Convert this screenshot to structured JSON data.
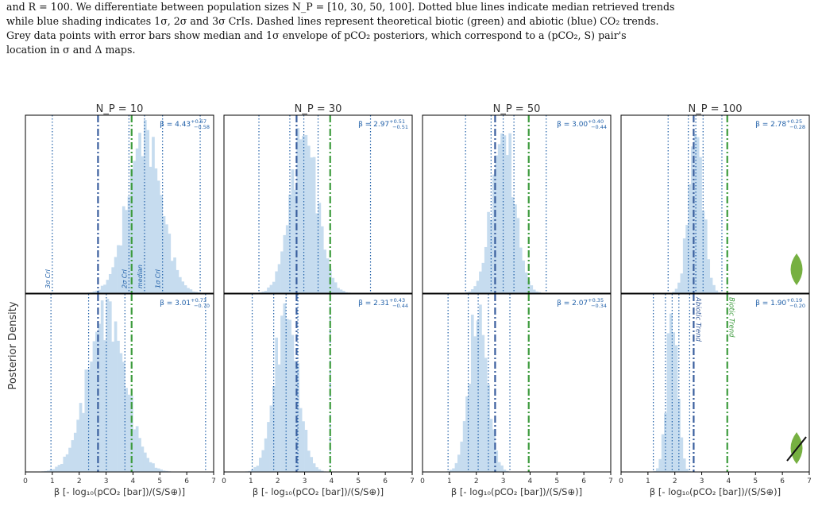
{
  "caption": {
    "line1": "and R = 100. We differentiate between population sizes N_P = [10, 30, 50, 100]. Dotted blue lines indicate median retrieved trends",
    "line2": "while blue shading indicates 1σ, 2σ and 3σ CrIs. Dashed lines represent theoretical biotic (green) and abiotic (blue) CO₂ trends.",
    "line3": "Grey data points with error bars show median and 1σ envelope of pCO₂ posteriors, which correspond to a (pCO₂, S) pair's",
    "line4": "location in σ and Δ maps."
  },
  "colors": {
    "hist": "#c6dcef",
    "ci": "#1f5fa8",
    "abiotic": "#3a5f9e",
    "biotic": "#3d9b3d",
    "frame": "#000000",
    "leaf": "#76b041"
  },
  "shared": {
    "ylabel": "Posterior Density",
    "xlabel": "β [- log₁₀(pCO₂ [bar])/(S/S⊕)]",
    "xlim": [
      0,
      7
    ],
    "xticks": [
      0,
      1,
      2,
      3,
      4,
      5,
      6,
      7
    ],
    "abiotic_trend": 2.7,
    "biotic_trend": 3.95
  },
  "annotations": {
    "ci_3sigma": "3σ CrI",
    "ci_2sigma": "2σ CrI",
    "ci_1sigma": "1σ CrI",
    "median": "median",
    "abiotic": "Abiotic Trend",
    "biotic": "Biotic Trend"
  },
  "columns": [
    "N_P = 10",
    "N_P = 30",
    "N_P = 50",
    "N_P = 100"
  ],
  "chart_data": [
    {
      "type": "bar",
      "title": "N_P = 10",
      "row": "top",
      "beta": "β = 4.43",
      "plus": "+0.67",
      "minus": "−0.58",
      "median": 4.43,
      "sd": 0.62,
      "ci": [
        1.0,
        3.85,
        5.1,
        6.5
      ],
      "leaf": false,
      "strike": false
    },
    {
      "type": "bar",
      "title": "N_P = 30",
      "row": "top",
      "beta": "β = 2.97",
      "plus": "+0.51",
      "minus": "−0.51",
      "median": 2.97,
      "sd": 0.5,
      "ci": [
        1.3,
        2.45,
        3.5,
        5.45
      ],
      "leaf": false,
      "strike": false
    },
    {
      "type": "bar",
      "title": "N_P = 50",
      "row": "top",
      "beta": "β = 3.00",
      "plus": "+0.40",
      "minus": "−0.44",
      "median": 3.0,
      "sd": 0.42,
      "ci": [
        1.6,
        2.55,
        3.4,
        4.6
      ],
      "leaf": false,
      "strike": false
    },
    {
      "type": "bar",
      "title": "N_P = 100",
      "row": "top",
      "beta": "β = 2.78",
      "plus": "+0.25",
      "minus": "−0.28",
      "median": 2.78,
      "sd": 0.27,
      "ci": [
        1.75,
        2.5,
        3.05,
        3.75
      ],
      "leaf": true,
      "strike": false
    },
    {
      "type": "bar",
      "title": "",
      "row": "bottom",
      "beta": "β = 3.01",
      "plus": "+0.73",
      "minus": "−0.70",
      "median": 3.01,
      "sd": 0.7,
      "ci": [
        0.95,
        2.35,
        3.7,
        6.7
      ],
      "leaf": false,
      "strike": false
    },
    {
      "type": "bar",
      "title": "",
      "row": "bottom",
      "beta": "β = 2.31",
      "plus": "+0.43",
      "minus": "−0.44",
      "median": 2.31,
      "sd": 0.43,
      "ci": [
        1.05,
        1.85,
        2.75,
        3.95
      ],
      "leaf": false,
      "strike": false
    },
    {
      "type": "bar",
      "title": "",
      "row": "bottom",
      "beta": "β = 2.07",
      "plus": "+0.35",
      "minus": "−0.34",
      "median": 2.07,
      "sd": 0.34,
      "ci": [
        0.95,
        1.7,
        2.45,
        3.25
      ],
      "leaf": false,
      "strike": false
    },
    {
      "type": "bar",
      "title": "",
      "row": "bottom",
      "beta": "β = 1.90",
      "plus": "+0.19",
      "minus": "−0.20",
      "median": 1.9,
      "sd": 0.2,
      "ci": [
        1.2,
        1.65,
        2.15,
        2.55
      ],
      "leaf": true,
      "strike": true
    }
  ]
}
